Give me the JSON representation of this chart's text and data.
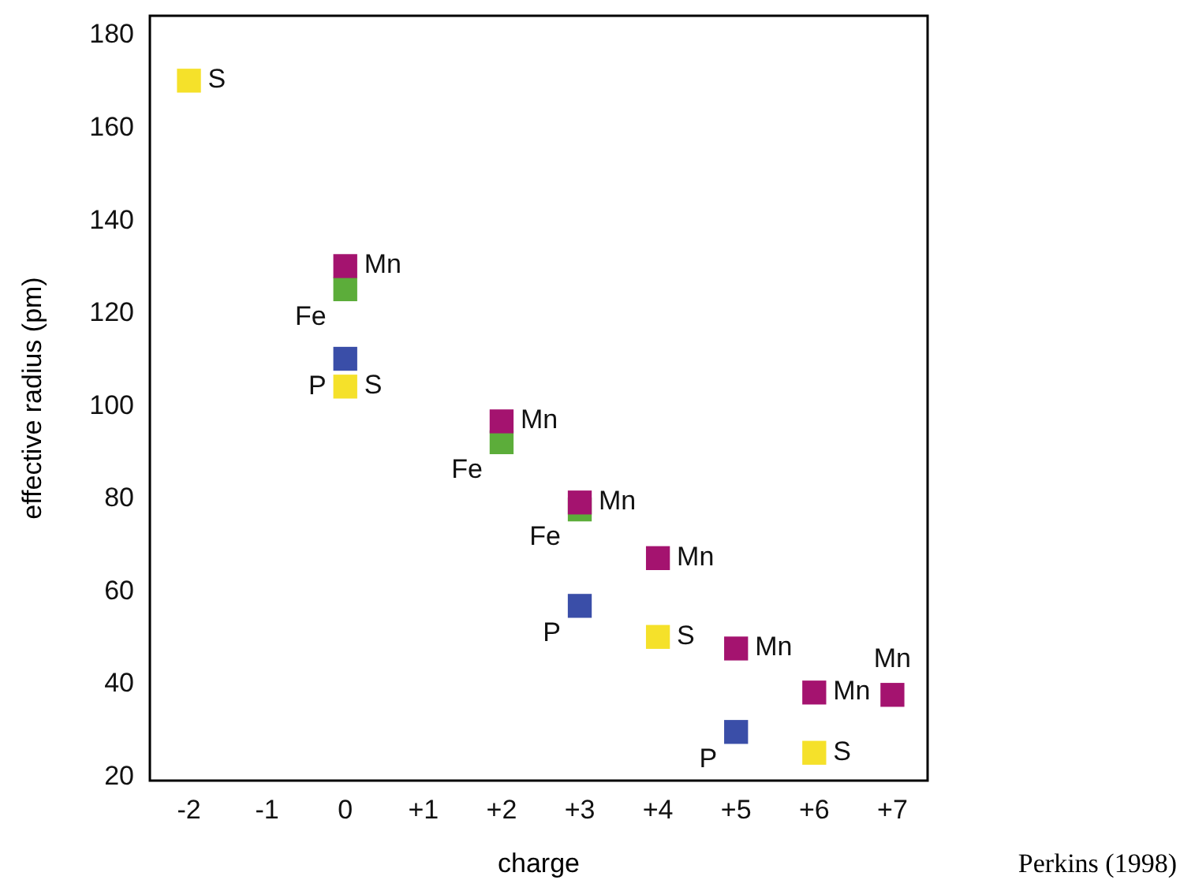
{
  "chart_data": {
    "type": "scatter",
    "xlabel": "charge",
    "ylabel": "effective radius (pm)",
    "marker": "square",
    "grid": false,
    "legend": false,
    "xlim": [
      -2.5,
      7.45
    ],
    "xticks": [
      {
        "value": -2,
        "label": "-2"
      },
      {
        "value": -1,
        "label": "-1"
      },
      {
        "value": 0,
        "label": "0"
      },
      {
        "value": 1,
        "label": "+1"
      },
      {
        "value": 2,
        "label": "+2"
      },
      {
        "value": 3,
        "label": "+3"
      },
      {
        "value": 4,
        "label": "+4"
      },
      {
        "value": 5,
        "label": "+5"
      },
      {
        "value": 6,
        "label": "+6"
      },
      {
        "value": 7,
        "label": "+7"
      }
    ],
    "ylim": [
      19,
      184
    ],
    "yticks": [
      20,
      40,
      60,
      80,
      100,
      120,
      140,
      160,
      180
    ],
    "series": [
      {
        "name": "Mn",
        "color": "#a4136f",
        "x": [
          0,
          2,
          3,
          4,
          5,
          6,
          7
        ],
        "values": [
          130,
          96.5,
          79,
          67,
          47.5,
          38,
          37.5
        ]
      },
      {
        "name": "Fe",
        "color": "#5cad3a",
        "x": [
          0,
          2,
          3
        ],
        "values": [
          125,
          92,
          77.5
        ]
      },
      {
        "name": "P",
        "color": "#3a4ea8",
        "x": [
          0,
          3,
          5
        ],
        "values": [
          110,
          56.7,
          29.5
        ]
      },
      {
        "name": "S",
        "color": "#f5e12a",
        "x": [
          -2,
          0,
          4,
          6
        ],
        "values": [
          170,
          104,
          50,
          25
        ]
      }
    ],
    "annotations": [
      "Perkins (1998)"
    ]
  }
}
